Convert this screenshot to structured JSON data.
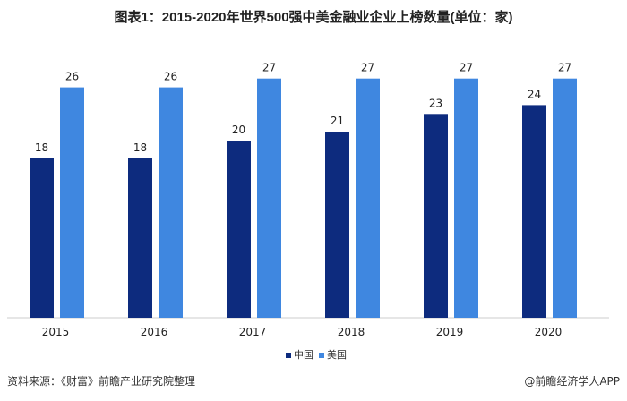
{
  "title": "图表1：2015-2020年世界500强中美金融业企业上榜数量(单位：家)",
  "source": "资料来源：《财富》前瞻产业研究院整理",
  "brand": "@前瞻经济学人APP",
  "chart_data": {
    "type": "bar",
    "title": "图表1：2015-2020年世界500强中美金融业企业上榜数量(单位：家)",
    "categories": [
      "2015",
      "2016",
      "2017",
      "2018",
      "2019",
      "2020"
    ],
    "series": [
      {
        "name": "中国",
        "color": "#0d2b7e",
        "values": [
          18,
          18,
          20,
          21,
          23,
          24
        ]
      },
      {
        "name": "美国",
        "color": "#3f87e0",
        "values": [
          26,
          26,
          27,
          27,
          27,
          27
        ]
      }
    ],
    "ylim": [
      0,
      27
    ],
    "grid": false,
    "legend": "bottom"
  }
}
